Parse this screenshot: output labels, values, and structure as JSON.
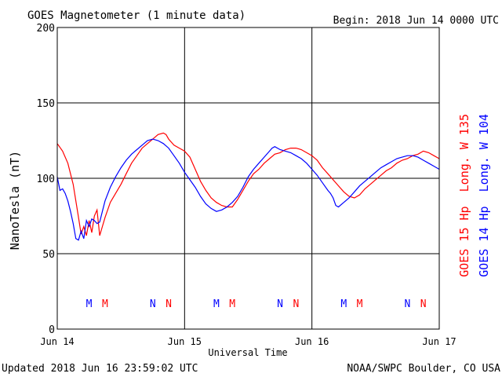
{
  "header": {
    "title": "GOES Magnetometer (1 minute data)",
    "begin_label": "Begin:  2018 Jun 14 0000 UTC"
  },
  "footer": {
    "updated": "Updated 2018 Jun 16 23:59:02 UTC",
    "credit": "NOAA/SWPC Boulder, CO USA"
  },
  "chart_data": {
    "type": "line",
    "title": "GOES Magnetometer (1 minute data)",
    "xlabel": "Universal Time",
    "ylabel": "NanoTesla (nT)",
    "x_unit": "hours since 2018 Jun 14 0000 UTC",
    "xlim": [
      0,
      72
    ],
    "ylim": [
      0,
      200
    ],
    "x_ticks": [
      {
        "x": 0,
        "label": "Jun 14"
      },
      {
        "x": 24,
        "label": "Jun 15"
      },
      {
        "x": 48,
        "label": "Jun 16"
      },
      {
        "x": 72,
        "label": "Jun 17"
      }
    ],
    "y_ticks": [
      0,
      50,
      100,
      150,
      200
    ],
    "grid": true,
    "series": [
      {
        "name": "GOES 15 Hp  Long. W 135",
        "color": "#ff0000",
        "points": [
          [
            0,
            123
          ],
          [
            1,
            118
          ],
          [
            2,
            110
          ],
          [
            3,
            96
          ],
          [
            3.5,
            85
          ],
          [
            4,
            74
          ],
          [
            4.5,
            63
          ],
          [
            5,
            68
          ],
          [
            5.5,
            62
          ],
          [
            6,
            72
          ],
          [
            6.5,
            64
          ],
          [
            7,
            75
          ],
          [
            7.5,
            79
          ],
          [
            8,
            62
          ],
          [
            9,
            74
          ],
          [
            10,
            84
          ],
          [
            11,
            90
          ],
          [
            12,
            96
          ],
          [
            13,
            103
          ],
          [
            14,
            110
          ],
          [
            15,
            115
          ],
          [
            16,
            120
          ],
          [
            17,
            123
          ],
          [
            18,
            126
          ],
          [
            19,
            129
          ],
          [
            20,
            130
          ],
          [
            20.5,
            129
          ],
          [
            21,
            126
          ],
          [
            22,
            122
          ],
          [
            23,
            120
          ],
          [
            24,
            118
          ],
          [
            25,
            114
          ],
          [
            26,
            106
          ],
          [
            27,
            98
          ],
          [
            28,
            92
          ],
          [
            29,
            87
          ],
          [
            30,
            84
          ],
          [
            31,
            82
          ],
          [
            32,
            81
          ],
          [
            33,
            81
          ],
          [
            34,
            86
          ],
          [
            35,
            92
          ],
          [
            36,
            98
          ],
          [
            37,
            103
          ],
          [
            38,
            106
          ],
          [
            39,
            110
          ],
          [
            40,
            113
          ],
          [
            41,
            116
          ],
          [
            42,
            117
          ],
          [
            43,
            119
          ],
          [
            44,
            120
          ],
          [
            45,
            120
          ],
          [
            46,
            119
          ],
          [
            47,
            117
          ],
          [
            48,
            115
          ],
          [
            49,
            112
          ],
          [
            50,
            107
          ],
          [
            51,
            103
          ],
          [
            52,
            99
          ],
          [
            53,
            95
          ],
          [
            54,
            91
          ],
          [
            55,
            88
          ],
          [
            56,
            87
          ],
          [
            57,
            89
          ],
          [
            58,
            93
          ],
          [
            59,
            96
          ],
          [
            60,
            99
          ],
          [
            61,
            102
          ],
          [
            62,
            105
          ],
          [
            63,
            107
          ],
          [
            64,
            110
          ],
          [
            65,
            112
          ],
          [
            66,
            113
          ],
          [
            67,
            115
          ],
          [
            68,
            116
          ],
          [
            69,
            118
          ],
          [
            70,
            117
          ],
          [
            71,
            115
          ],
          [
            72,
            113
          ]
        ]
      },
      {
        "name": "GOES 14 Hp  Long. W 104",
        "color": "#0000ff",
        "points": [
          [
            0,
            101
          ],
          [
            0.5,
            92
          ],
          [
            1,
            93
          ],
          [
            1.5,
            90
          ],
          [
            2,
            85
          ],
          [
            2.5,
            78
          ],
          [
            3,
            70
          ],
          [
            3.5,
            60
          ],
          [
            4,
            59
          ],
          [
            4.5,
            65
          ],
          [
            5,
            60
          ],
          [
            5.5,
            72
          ],
          [
            6,
            68
          ],
          [
            6.5,
            73
          ],
          [
            7,
            72
          ],
          [
            7.5,
            70
          ],
          [
            8,
            71
          ],
          [
            8.5,
            78
          ],
          [
            9,
            85
          ],
          [
            10,
            94
          ],
          [
            11,
            101
          ],
          [
            12,
            107
          ],
          [
            13,
            112
          ],
          [
            14,
            116
          ],
          [
            15,
            119
          ],
          [
            16,
            122
          ],
          [
            17,
            125
          ],
          [
            18,
            126
          ],
          [
            19,
            125
          ],
          [
            20,
            123
          ],
          [
            21,
            120
          ],
          [
            22,
            115
          ],
          [
            23,
            110
          ],
          [
            24,
            104
          ],
          [
            25,
            99
          ],
          [
            26,
            94
          ],
          [
            27,
            88
          ],
          [
            28,
            83
          ],
          [
            29,
            80
          ],
          [
            30,
            78
          ],
          [
            31,
            79
          ],
          [
            32,
            81
          ],
          [
            33,
            84
          ],
          [
            34,
            88
          ],
          [
            35,
            94
          ],
          [
            36,
            101
          ],
          [
            37,
            106
          ],
          [
            38,
            110
          ],
          [
            39,
            114
          ],
          [
            40,
            118
          ],
          [
            40.5,
            120
          ],
          [
            41,
            121
          ],
          [
            42,
            119
          ],
          [
            43,
            118
          ],
          [
            44,
            117
          ],
          [
            45,
            115
          ],
          [
            46,
            113
          ],
          [
            47,
            110
          ],
          [
            48,
            106
          ],
          [
            49,
            102
          ],
          [
            50,
            97
          ],
          [
            51,
            92
          ],
          [
            51.5,
            90
          ],
          [
            52,
            87
          ],
          [
            52.5,
            82
          ],
          [
            53,
            81
          ],
          [
            54,
            84
          ],
          [
            55,
            87
          ],
          [
            56,
            91
          ],
          [
            57,
            95
          ],
          [
            58,
            98
          ],
          [
            59,
            101
          ],
          [
            60,
            104
          ],
          [
            61,
            107
          ],
          [
            62,
            109
          ],
          [
            63,
            111
          ],
          [
            64,
            113
          ],
          [
            65,
            114
          ],
          [
            66,
            115
          ],
          [
            67,
            115
          ],
          [
            68,
            114
          ],
          [
            69,
            112
          ],
          [
            70,
            110
          ],
          [
            71,
            108
          ],
          [
            72,
            106
          ]
        ]
      }
    ],
    "annotations": [
      {
        "hour": 6,
        "text": "M",
        "color": "#0000ff"
      },
      {
        "hour": 9,
        "text": "M",
        "color": "#ff0000"
      },
      {
        "hour": 18,
        "text": "N",
        "color": "#0000ff"
      },
      {
        "hour": 21,
        "text": "N",
        "color": "#ff0000"
      },
      {
        "hour": 30,
        "text": "M",
        "color": "#0000ff"
      },
      {
        "hour": 33,
        "text": "M",
        "color": "#ff0000"
      },
      {
        "hour": 42,
        "text": "N",
        "color": "#0000ff"
      },
      {
        "hour": 45,
        "text": "N",
        "color": "#ff0000"
      },
      {
        "hour": 54,
        "text": "M",
        "color": "#0000ff"
      },
      {
        "hour": 57,
        "text": "M",
        "color": "#ff0000"
      },
      {
        "hour": 66,
        "text": "N",
        "color": "#0000ff"
      },
      {
        "hour": 69,
        "text": "N",
        "color": "#ff0000"
      }
    ]
  }
}
